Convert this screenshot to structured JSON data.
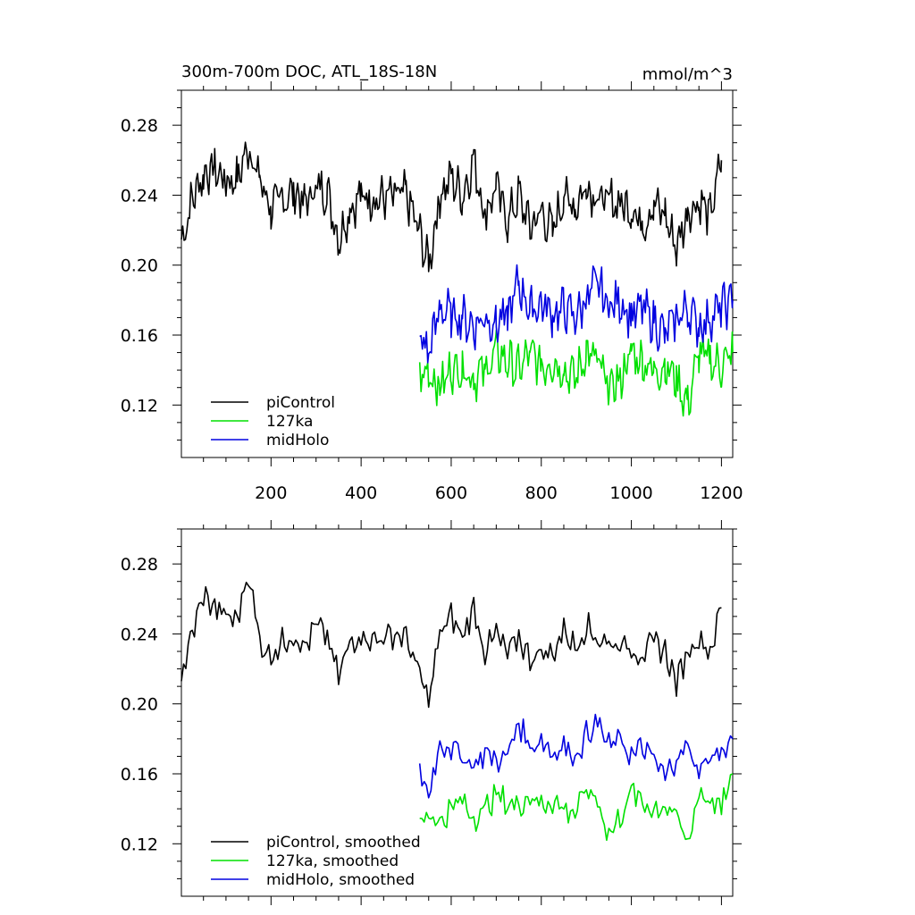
{
  "title": "300m-700m DOC, ATL_18S-18N",
  "units": "mmol/m^3",
  "colors": {
    "piControl": "#000000",
    "127ka": "#00e000",
    "midHolo": "#0000e0"
  },
  "chart_data": [
    {
      "type": "line",
      "panel": "raw",
      "xlim": [
        1,
        1225
      ],
      "ylim": [
        0.09,
        0.3
      ],
      "x_ticks": [
        "200",
        "400",
        "600",
        "800",
        "1000",
        "1200"
      ],
      "y_ticks": [
        "0.28",
        "0.24",
        "0.20",
        "0.16",
        "0.12"
      ],
      "grid": false,
      "legend_position": "bottom-left",
      "series": [
        {
          "name": "piControl",
          "color": "#000000",
          "x": [
            1,
            25,
            50,
            75,
            100,
            125,
            150,
            175,
            200,
            225,
            250,
            275,
            300,
            325,
            350,
            375,
            400,
            425,
            450,
            475,
            500,
            525,
            550,
            575,
            600,
            625,
            650,
            675,
            700,
            725,
            750,
            775,
            800,
            825,
            850,
            875,
            900,
            925,
            950,
            975,
            1000,
            1025,
            1050,
            1075,
            1100,
            1125,
            1150,
            1175,
            1200
          ],
          "y": [
            0.213,
            0.238,
            0.252,
            0.255,
            0.248,
            0.249,
            0.268,
            0.248,
            0.233,
            0.237,
            0.243,
            0.235,
            0.245,
            0.242,
            0.215,
            0.232,
            0.24,
            0.238,
            0.238,
            0.24,
            0.24,
            0.222,
            0.2,
            0.24,
            0.25,
            0.24,
            0.26,
            0.23,
            0.245,
            0.225,
            0.24,
            0.222,
            0.23,
            0.22,
            0.24,
            0.233,
            0.246,
            0.238,
            0.237,
            0.235,
            0.233,
            0.223,
            0.235,
            0.228,
            0.21,
            0.23,
            0.237,
            0.228,
            0.26
          ]
        },
        {
          "name": "127ka",
          "color": "#00e000",
          "x": [
            530,
            550,
            575,
            600,
            625,
            650,
            675,
            700,
            725,
            750,
            775,
            800,
            825,
            850,
            875,
            900,
            925,
            950,
            975,
            1000,
            1025,
            1050,
            1075,
            1100,
            1125,
            1150,
            1175,
            1200,
            1225
          ],
          "y": [
            0.135,
            0.14,
            0.13,
            0.14,
            0.142,
            0.135,
            0.14,
            0.15,
            0.145,
            0.14,
            0.15,
            0.142,
            0.145,
            0.14,
            0.135,
            0.15,
            0.145,
            0.128,
            0.135,
            0.15,
            0.145,
            0.14,
            0.142,
            0.135,
            0.12,
            0.15,
            0.145,
            0.142,
            0.15
          ]
        },
        {
          "name": "midHolo",
          "color": "#0000e0",
          "x": [
            530,
            550,
            575,
            600,
            625,
            650,
            675,
            700,
            725,
            750,
            775,
            800,
            825,
            850,
            875,
            900,
            925,
            950,
            975,
            1000,
            1025,
            1050,
            1075,
            1100,
            1125,
            1150,
            1175,
            1200,
            1225
          ],
          "y": [
            0.16,
            0.15,
            0.175,
            0.172,
            0.17,
            0.165,
            0.17,
            0.167,
            0.17,
            0.19,
            0.175,
            0.178,
            0.172,
            0.175,
            0.17,
            0.18,
            0.19,
            0.175,
            0.18,
            0.17,
            0.175,
            0.168,
            0.16,
            0.17,
            0.175,
            0.165,
            0.17,
            0.175,
            0.18
          ]
        }
      ]
    },
    {
      "type": "line",
      "panel": "smoothed",
      "xlim": [
        1,
        1225
      ],
      "ylim": [
        0.09,
        0.3
      ],
      "y_ticks": [
        "0.28",
        "0.24",
        "0.20",
        "0.16",
        "0.12"
      ],
      "grid": false,
      "legend_position": "bottom-left",
      "series": [
        {
          "name": "piControl, smoothed",
          "color": "#000000",
          "x": [
            1,
            25,
            50,
            75,
            100,
            125,
            150,
            175,
            200,
            225,
            250,
            275,
            300,
            325,
            350,
            375,
            400,
            425,
            450,
            475,
            500,
            525,
            550,
            575,
            600,
            625,
            650,
            675,
            700,
            725,
            750,
            775,
            800,
            825,
            850,
            875,
            900,
            925,
            950,
            975,
            1000,
            1025,
            1050,
            1075,
            1100,
            1125,
            1150,
            1175,
            1200
          ],
          "y": [
            0.215,
            0.24,
            0.262,
            0.255,
            0.25,
            0.248,
            0.276,
            0.235,
            0.228,
            0.235,
            0.24,
            0.232,
            0.245,
            0.238,
            0.215,
            0.235,
            0.24,
            0.236,
            0.238,
            0.24,
            0.238,
            0.22,
            0.202,
            0.24,
            0.25,
            0.238,
            0.255,
            0.23,
            0.24,
            0.228,
            0.238,
            0.226,
            0.23,
            0.228,
            0.243,
            0.232,
            0.245,
            0.237,
            0.235,
            0.234,
            0.232,
            0.228,
            0.235,
            0.23,
            0.212,
            0.23,
            0.238,
            0.23,
            0.255
          ]
        },
        {
          "name": "127ka, smoothed",
          "color": "#00e000",
          "x": [
            530,
            550,
            575,
            600,
            625,
            650,
            675,
            700,
            725,
            750,
            775,
            800,
            825,
            850,
            875,
            900,
            925,
            950,
            975,
            1000,
            1025,
            1050,
            1075,
            1100,
            1125,
            1150,
            1175,
            1200,
            1225
          ],
          "y": [
            0.133,
            0.138,
            0.132,
            0.14,
            0.145,
            0.135,
            0.14,
            0.148,
            0.143,
            0.142,
            0.148,
            0.142,
            0.145,
            0.14,
            0.138,
            0.15,
            0.145,
            0.125,
            0.135,
            0.15,
            0.143,
            0.14,
            0.142,
            0.135,
            0.12,
            0.15,
            0.145,
            0.14,
            0.16
          ]
        },
        {
          "name": "midHolo, smoothed",
          "color": "#0000e0",
          "x": [
            530,
            550,
            575,
            600,
            625,
            650,
            675,
            700,
            725,
            750,
            775,
            800,
            825,
            850,
            875,
            900,
            925,
            950,
            975,
            1000,
            1025,
            1050,
            1075,
            1100,
            1125,
            1150,
            1175,
            1200,
            1225
          ],
          "y": [
            0.162,
            0.148,
            0.178,
            0.175,
            0.17,
            0.165,
            0.172,
            0.168,
            0.17,
            0.19,
            0.175,
            0.18,
            0.172,
            0.176,
            0.17,
            0.182,
            0.19,
            0.175,
            0.18,
            0.17,
            0.175,
            0.168,
            0.158,
            0.17,
            0.175,
            0.162,
            0.17,
            0.172,
            0.18
          ]
        }
      ]
    }
  ]
}
